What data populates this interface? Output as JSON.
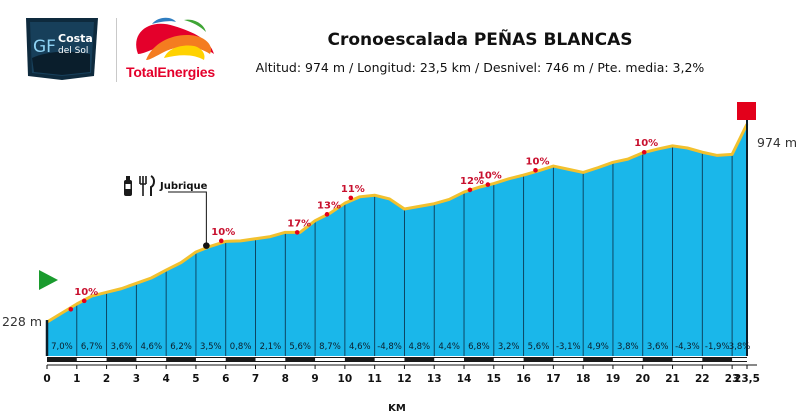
{
  "header": {
    "title": "Cronoescalada PEÑAS BLANCAS",
    "subtitle": "Altitud: 974 m / Longitud: 23,5 km / Desnivel: 746 m / Pte. media: 3,2%"
  },
  "logos": {
    "gf_line1": "GF",
    "gf_line2": "Costa",
    "gf_line3": "del Sol",
    "brand": "TotalEnergies"
  },
  "colors": {
    "fill": "#1ab7ea",
    "outline": "#f2c12e",
    "grid": "#0b3a55",
    "marker": "#e3001b",
    "axis": "#111111",
    "start_flag": "#1a9b2e",
    "finish_flag": "#e3001b"
  },
  "chart_data": {
    "type": "area",
    "xlabel": "KM",
    "x_ticks": [
      "0",
      "1",
      "2",
      "3",
      "4",
      "5",
      "6",
      "7",
      "8",
      "9",
      "10",
      "11",
      "12",
      "13",
      "14",
      "15",
      "16",
      "17",
      "18",
      "19",
      "20",
      "21",
      "22",
      "23",
      "23,5"
    ],
    "x_tick_values": [
      0,
      1,
      2,
      3,
      4,
      5,
      6,
      7,
      8,
      9,
      10,
      11,
      12,
      13,
      14,
      15,
      16,
      17,
      18,
      19,
      20,
      21,
      22,
      23,
      23.5
    ],
    "xlim": [
      0,
      23.5
    ],
    "ylim": [
      100,
      1080
    ],
    "start_altitude_label": "228 m",
    "end_altitude_label": "974 m",
    "profile": {
      "x": [
        0,
        0.5,
        1,
        1.5,
        2,
        2.5,
        3,
        3.5,
        4,
        4.5,
        5,
        5.5,
        6,
        6.5,
        7,
        7.5,
        8,
        8.5,
        9,
        9.5,
        10,
        10.5,
        11,
        11.5,
        12,
        12.5,
        13,
        13.5,
        14,
        14.5,
        15,
        15.5,
        16,
        16.5,
        17,
        17.5,
        18,
        18.5,
        19,
        19.5,
        20,
        20.5,
        21,
        21.5,
        22,
        22.5,
        23,
        23.5
      ],
      "y": [
        228,
        262,
        296,
        326,
        340,
        354,
        374,
        394,
        424,
        452,
        492,
        514,
        532,
        534,
        542,
        550,
        566,
        566,
        610,
        638,
        676,
        700,
        706,
        692,
        654,
        664,
        674,
        690,
        718,
        736,
        750,
        768,
        782,
        798,
        816,
        804,
        792,
        810,
        830,
        842,
        866,
        880,
        892,
        884,
        868,
        856,
        860,
        974
      ]
    },
    "km_gradients": [
      "7,0%",
      "6,7%",
      "3,6%",
      "4,6%",
      "6,2%",
      "3,5%",
      "0,8%",
      "2,1%",
      "5,6%",
      "8,7%",
      "4,6%",
      "-4,8%",
      "4,8%",
      "4,4%",
      "6,8%",
      "3,2%",
      "5,6%",
      "-3,1%",
      "4,9%",
      "3,8%",
      "3,6%",
      "-4,3%",
      "-1,9%",
      "3,8%"
    ],
    "steep_markers": [
      {
        "x": 1.25,
        "y": 308,
        "label": "10%"
      },
      {
        "x": 0.8,
        "y": 276,
        "label": ""
      },
      {
        "x": 5.85,
        "y": 534,
        "label": "10%"
      },
      {
        "x": 8.4,
        "y": 566,
        "label": "17%"
      },
      {
        "x": 9.4,
        "y": 634,
        "label": "13%"
      },
      {
        "x": 10.2,
        "y": 696,
        "label": "11%"
      },
      {
        "x": 14.2,
        "y": 726,
        "label": "12%"
      },
      {
        "x": 14.8,
        "y": 746,
        "label": "10%"
      },
      {
        "x": 16.4,
        "y": 800,
        "label": "10%"
      },
      {
        "x": 20.05,
        "y": 868,
        "label": "10%"
      }
    ],
    "poi": {
      "x": 5.35,
      "y": 516,
      "label": "Jubrique"
    }
  }
}
